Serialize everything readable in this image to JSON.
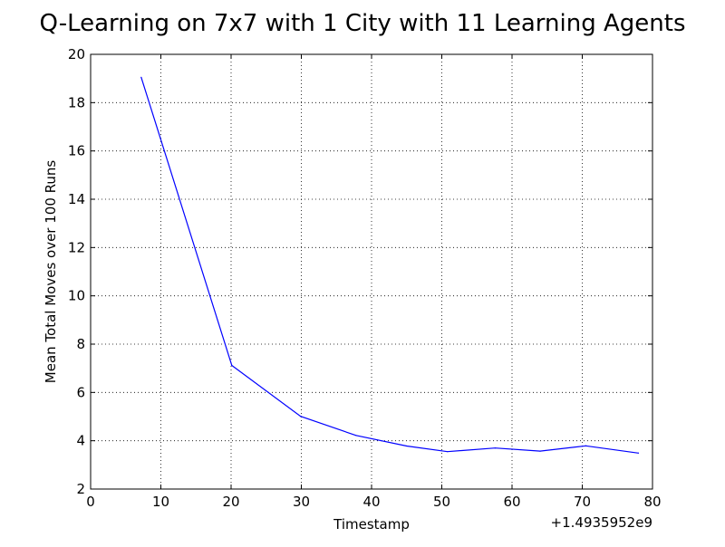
{
  "chart_data": {
    "type": "line",
    "title": "Q-Learning on 7x7 with 1 City with 11 Learning Agents",
    "xlabel": "Timestamp",
    "ylabel": "Mean Total Moves over 100 Runs",
    "x_offset_label": "+1.4935952e9",
    "xlim": [
      0,
      80
    ],
    "ylim": [
      2,
      20
    ],
    "xticks": [
      0,
      10,
      20,
      30,
      40,
      50,
      60,
      70,
      80
    ],
    "yticks": [
      2,
      4,
      6,
      8,
      10,
      12,
      14,
      16,
      18,
      20
    ],
    "grid": true,
    "legend": "none",
    "line_color": "#0000ff",
    "series": [
      {
        "x": [
          7.2,
          20.1,
          29.9,
          37.8,
          45.0,
          50.8,
          57.6,
          64.0,
          70.5,
          78.0
        ],
        "y": [
          19.05,
          7.12,
          5.01,
          4.22,
          3.78,
          3.55,
          3.7,
          3.57,
          3.79,
          3.49
        ]
      }
    ]
  }
}
